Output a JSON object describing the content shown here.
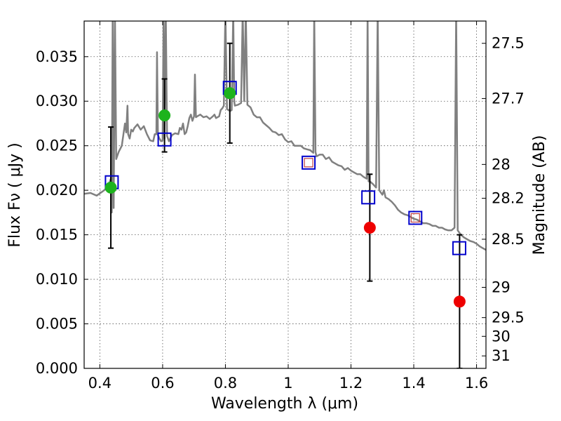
{
  "chart_data": {
    "type": "scatter",
    "xlabel": "Wavelength  λ (μm)",
    "ylabel": "Flux  Fν  ( μJy )",
    "ylabel_right": "Magnitude (AB)",
    "xlim": [
      0.35,
      1.63
    ],
    "ylim": [
      0.0,
      0.039
    ],
    "grid": true,
    "x_ticks": [
      0.4,
      0.6,
      0.8,
      1.0,
      1.2,
      1.4,
      1.6
    ],
    "x_tick_labels": [
      "0.4",
      "0.6",
      "0.8",
      "1",
      "1.2",
      "1.4",
      "1.6"
    ],
    "y_ticks": [
      0.0,
      0.005,
      0.01,
      0.015,
      0.02,
      0.025,
      0.03,
      0.035
    ],
    "y_tick_labels": [
      "0.000",
      "0.005",
      "0.010",
      "0.015",
      "0.020",
      "0.025",
      "0.030",
      "0.035"
    ],
    "right_ticks": [
      {
        "label": "27.5",
        "flux": 0.0365
      },
      {
        "label": "27.7",
        "flux": 0.0303
      },
      {
        "label": "28",
        "flux": 0.0229
      },
      {
        "label": "28.2",
        "flux": 0.0191
      },
      {
        "label": "28.5",
        "flux": 0.0145
      },
      {
        "label": "29",
        "flux": 0.0091
      },
      {
        "label": "29.5",
        "flux": 0.0057
      },
      {
        "label": "30",
        "flux": 0.0036
      },
      {
        "label": "31",
        "flux": 0.0014
      }
    ],
    "colors": {
      "model": "#808080",
      "model_phot": "#0000cc",
      "detection": "#1db31d",
      "upper": "#ee0000",
      "inner_square": "#c04040"
    },
    "model_spectrum": [
      [
        0.35,
        0.0196
      ],
      [
        0.37,
        0.0197
      ],
      [
        0.39,
        0.0194
      ],
      [
        0.41,
        0.0199
      ],
      [
        0.425,
        0.0203
      ],
      [
        0.435,
        0.0213
      ],
      [
        0.438,
        0.0175
      ],
      [
        0.441,
        0.04
      ],
      [
        0.444,
        0.018
      ],
      [
        0.448,
        0.04
      ],
      [
        0.452,
        0.0235
      ],
      [
        0.46,
        0.0243
      ],
      [
        0.47,
        0.025
      ],
      [
        0.48,
        0.0275
      ],
      [
        0.484,
        0.0265
      ],
      [
        0.488,
        0.0295
      ],
      [
        0.49,
        0.0263
      ],
      [
        0.495,
        0.0258
      ],
      [
        0.5,
        0.0268
      ],
      [
        0.505,
        0.0266
      ],
      [
        0.51,
        0.027
      ],
      [
        0.52,
        0.0274
      ],
      [
        0.53,
        0.0268
      ],
      [
        0.54,
        0.0272
      ],
      [
        0.55,
        0.0263
      ],
      [
        0.56,
        0.0256
      ],
      [
        0.57,
        0.0255
      ],
      [
        0.575,
        0.0263
      ],
      [
        0.58,
        0.0263
      ],
      [
        0.582,
        0.0355
      ],
      [
        0.585,
        0.0262
      ],
      [
        0.59,
        0.0258
      ],
      [
        0.595,
        0.0255
      ],
      [
        0.6,
        0.0256
      ],
      [
        0.603,
        0.04
      ],
      [
        0.606,
        0.0258
      ],
      [
        0.61,
        0.04
      ],
      [
        0.614,
        0.0261
      ],
      [
        0.62,
        0.0255
      ],
      [
        0.63,
        0.0262
      ],
      [
        0.64,
        0.0264
      ],
      [
        0.65,
        0.0263
      ],
      [
        0.655,
        0.027
      ],
      [
        0.66,
        0.0268
      ],
      [
        0.665,
        0.0275
      ],
      [
        0.67,
        0.0263
      ],
      [
        0.675,
        0.0265
      ],
      [
        0.68,
        0.0272
      ],
      [
        0.685,
        0.0281
      ],
      [
        0.69,
        0.0285
      ],
      [
        0.695,
        0.0278
      ],
      [
        0.7,
        0.0283
      ],
      [
        0.703,
        0.033
      ],
      [
        0.706,
        0.0282
      ],
      [
        0.71,
        0.0283
      ],
      [
        0.72,
        0.0285
      ],
      [
        0.73,
        0.0282
      ],
      [
        0.74,
        0.0283
      ],
      [
        0.75,
        0.028
      ],
      [
        0.76,
        0.0283
      ],
      [
        0.765,
        0.0285
      ],
      [
        0.77,
        0.0281
      ],
      [
        0.78,
        0.0283
      ],
      [
        0.785,
        0.029
      ],
      [
        0.79,
        0.0292
      ],
      [
        0.795,
        0.0295
      ],
      [
        0.8,
        0.04
      ],
      [
        0.805,
        0.0291
      ],
      [
        0.81,
        0.029
      ],
      [
        0.815,
        0.0289
      ],
      [
        0.82,
        0.029
      ],
      [
        0.825,
        0.04
      ],
      [
        0.828,
        0.03
      ],
      [
        0.83,
        0.0295
      ],
      [
        0.84,
        0.0296
      ],
      [
        0.85,
        0.0298
      ],
      [
        0.855,
        0.04
      ],
      [
        0.86,
        0.03
      ],
      [
        0.865,
        0.04
      ],
      [
        0.87,
        0.0296
      ],
      [
        0.88,
        0.0293
      ],
      [
        0.89,
        0.0285
      ],
      [
        0.9,
        0.0282
      ],
      [
        0.91,
        0.0282
      ],
      [
        0.92,
        0.0276
      ],
      [
        0.93,
        0.0273
      ],
      [
        0.94,
        0.027
      ],
      [
        0.95,
        0.0266
      ],
      [
        0.96,
        0.0265
      ],
      [
        0.97,
        0.0262
      ],
      [
        0.98,
        0.0263
      ],
      [
        0.99,
        0.0257
      ],
      [
        1.0,
        0.0254
      ],
      [
        1.01,
        0.0255
      ],
      [
        1.02,
        0.025
      ],
      [
        1.03,
        0.025
      ],
      [
        1.04,
        0.025
      ],
      [
        1.05,
        0.0247
      ],
      [
        1.06,
        0.0246
      ],
      [
        1.07,
        0.0245
      ],
      [
        1.08,
        0.0242
      ],
      [
        1.083,
        0.04
      ],
      [
        1.087,
        0.0243
      ],
      [
        1.09,
        0.0238
      ],
      [
        1.1,
        0.024
      ],
      [
        1.11,
        0.024
      ],
      [
        1.12,
        0.0235
      ],
      [
        1.13,
        0.0237
      ],
      [
        1.14,
        0.0232
      ],
      [
        1.15,
        0.023
      ],
      [
        1.16,
        0.0228
      ],
      [
        1.17,
        0.0227
      ],
      [
        1.18,
        0.0223
      ],
      [
        1.19,
        0.0225
      ],
      [
        1.2,
        0.0222
      ],
      [
        1.21,
        0.022
      ],
      [
        1.22,
        0.0218
      ],
      [
        1.23,
        0.0218
      ],
      [
        1.24,
        0.0215
      ],
      [
        1.25,
        0.0213
      ],
      [
        1.253,
        0.04
      ],
      [
        1.256,
        0.021
      ],
      [
        1.26,
        0.021
      ],
      [
        1.27,
        0.0207
      ],
      [
        1.28,
        0.0203
      ],
      [
        1.285,
        0.04
      ],
      [
        1.29,
        0.02
      ],
      [
        1.3,
        0.0195
      ],
      [
        1.305,
        0.02
      ],
      [
        1.31,
        0.0192
      ],
      [
        1.32,
        0.019
      ],
      [
        1.33,
        0.0187
      ],
      [
        1.34,
        0.0183
      ],
      [
        1.35,
        0.0178
      ],
      [
        1.36,
        0.0175
      ],
      [
        1.37,
        0.0173
      ],
      [
        1.38,
        0.0172
      ],
      [
        1.39,
        0.017
      ],
      [
        1.4,
        0.0168
      ],
      [
        1.41,
        0.0167
      ],
      [
        1.42,
        0.0165
      ],
      [
        1.43,
        0.0163
      ],
      [
        1.44,
        0.0163
      ],
      [
        1.45,
        0.0162
      ],
      [
        1.46,
        0.016
      ],
      [
        1.47,
        0.016
      ],
      [
        1.48,
        0.0158
      ],
      [
        1.49,
        0.0158
      ],
      [
        1.5,
        0.0156
      ],
      [
        1.51,
        0.0155
      ],
      [
        1.52,
        0.0155
      ],
      [
        1.53,
        0.0158
      ],
      [
        1.535,
        0.04
      ],
      [
        1.54,
        0.0155
      ],
      [
        1.55,
        0.015
      ],
      [
        1.56,
        0.0147
      ],
      [
        1.57,
        0.0145
      ],
      [
        1.58,
        0.0143
      ],
      [
        1.59,
        0.0142
      ],
      [
        1.6,
        0.014
      ],
      [
        1.61,
        0.0137
      ],
      [
        1.62,
        0.0135
      ],
      [
        1.63,
        0.0133
      ]
    ],
    "model_photometry": [
      {
        "x": 0.438,
        "y": 0.0209
      },
      {
        "x": 0.606,
        "y": 0.0257
      },
      {
        "x": 0.814,
        "y": 0.0315
      },
      {
        "x": 1.255,
        "y": 0.0192
      },
      {
        "x": 1.545,
        "y": 0.0135
      }
    ],
    "model_photometry_nodata": [
      {
        "x": 1.065,
        "y": 0.0231
      },
      {
        "x": 1.405,
        "y": 0.0169
      }
    ],
    "detections": [
      {
        "x": 0.435,
        "y": 0.0203,
        "err_low": 0.0068,
        "err_high": 0.0068
      },
      {
        "x": 0.606,
        "y": 0.0284,
        "err_low": 0.0041,
        "err_high": 0.0041
      },
      {
        "x": 0.814,
        "y": 0.0309,
        "err_low": 0.0056,
        "err_high": 0.0056
      }
    ],
    "nondetections": [
      {
        "x": 1.26,
        "y": 0.0158,
        "err_low": 0.006,
        "err_high": 0.006
      },
      {
        "x": 1.546,
        "y": 0.0075,
        "err_low": 0.0075,
        "err_high": 0.0075
      }
    ]
  }
}
